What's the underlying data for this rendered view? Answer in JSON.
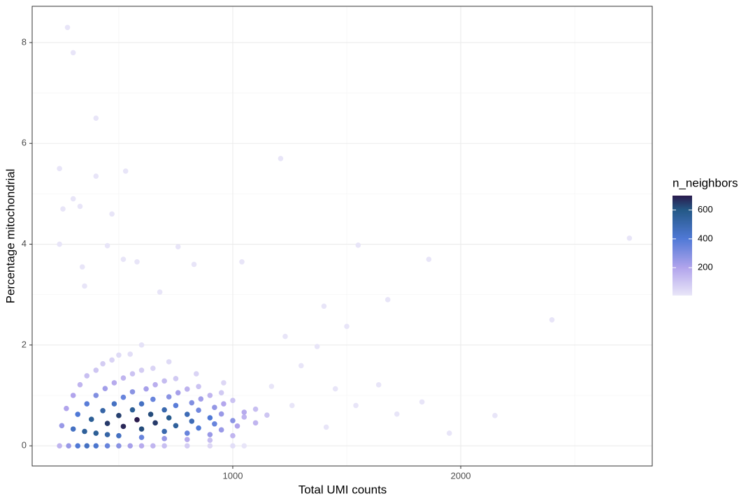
{
  "chart_data": {
    "type": "scatter",
    "xlabel": "Total UMI counts",
    "ylabel": "Percentage mitochondrial",
    "legend_title": "n_neighbors",
    "xlim": [
      120,
      2840
    ],
    "ylim": [
      -0.4,
      8.72
    ],
    "xticks": [
      1000,
      2000
    ],
    "yticks": [
      0,
      2,
      4,
      6,
      8
    ],
    "xminor": [
      500,
      1500,
      2500
    ],
    "yminor": [
      1,
      3,
      5,
      7
    ],
    "grid": true,
    "clim": [
      7,
      700
    ],
    "cticks": [
      200,
      400,
      600
    ],
    "colorscale": [
      {
        "value": 7,
        "color": "#e9e6f8"
      },
      {
        "value": 200,
        "color": "#b1a4ec"
      },
      {
        "value": 400,
        "color": "#5079d6"
      },
      {
        "value": 600,
        "color": "#245886"
      },
      {
        "value": 700,
        "color": "#2a1b4d"
      }
    ],
    "x": [
      240,
      280,
      320,
      360,
      400,
      450,
      500,
      550,
      600,
      650,
      700,
      800,
      900,
      1000,
      250,
      300,
      350,
      400,
      450,
      500,
      600,
      700,
      800,
      900,
      270,
      320,
      380,
      450,
      520,
      600,
      700,
      800,
      900,
      1000,
      300,
      360,
      430,
      500,
      580,
      660,
      750,
      850,
      950,
      330,
      400,
      480,
      560,
      640,
      720,
      820,
      920,
      1020,
      360,
      440,
      520,
      600,
      700,
      800,
      900,
      1000,
      1100,
      400,
      480,
      560,
      650,
      750,
      850,
      950,
      1050,
      430,
      520,
      620,
      720,
      820,
      920,
      1050,
      1150,
      470,
      560,
      660,
      760,
      860,
      960,
      1100,
      500,
      600,
      700,
      800,
      900,
      1000,
      550,
      650,
      750,
      850,
      950,
      600,
      720,
      840,
      960,
      275,
      300,
      400,
      240,
      530,
      1210,
      400,
      300,
      255,
      330,
      470,
      240,
      450,
      760,
      1550,
      1040,
      2740,
      1860,
      520,
      580,
      340,
      830,
      680,
      350,
      2400,
      1400,
      1680,
      1500,
      1230,
      1370,
      1640,
      1830,
      1950,
      2150,
      1720,
      1540,
      1450,
      1300,
      1410,
      1050,
      1260,
      1170
    ],
    "values": [
      0,
      0,
      0,
      0,
      0,
      0,
      0,
      0,
      0,
      0,
      0,
      0,
      0,
      0,
      0.4,
      0.333,
      0.286,
      0.25,
      0.222,
      0.2,
      0.167,
      0.143,
      0.125,
      0.111,
      0.741,
      0.625,
      0.526,
      0.444,
      0.385,
      0.333,
      0.286,
      0.25,
      0.222,
      0.2,
      1.0,
      0.833,
      0.698,
      0.6,
      0.517,
      0.455,
      0.4,
      0.353,
      0.316,
      1.212,
      1.0,
      0.833,
      0.714,
      0.625,
      0.556,
      0.488,
      0.435,
      0.392,
      1.389,
      1.136,
      0.962,
      0.833,
      0.714,
      0.625,
      0.556,
      0.5,
      0.455,
      1.5,
      1.25,
      1.071,
      0.923,
      0.8,
      0.706,
      0.632,
      0.571,
      1.628,
      1.346,
      1.129,
      0.972,
      0.854,
      0.761,
      0.667,
      0.609,
      1.702,
      1.429,
      1.212,
      1.053,
      0.93,
      0.833,
      0.727,
      1.8,
      1.5,
      1.286,
      1.125,
      1.0,
      0.9,
      1.818,
      1.538,
      1.333,
      1.176,
      1.053,
      2.0,
      1.667,
      1.429,
      1.25,
      8.3,
      7.8,
      6.5,
      5.5,
      5.45,
      5.7,
      5.35,
      4.9,
      4.7,
      4.75,
      4.6,
      4.0,
      3.97,
      3.95,
      3.98,
      3.65,
      4.12,
      3.7,
      3.7,
      3.65,
      3.55,
      3.6,
      3.05,
      3.17,
      2.5,
      2.77,
      2.9,
      2.37,
      2.17,
      1.97,
      1.21,
      0.87,
      0.25,
      0.6,
      0.63,
      0.8,
      1.13,
      1.59,
      0.37,
      0.0,
      0.8,
      1.18
    ],
    "color_values": [
      150,
      250,
      400,
      450,
      420,
      350,
      280,
      220,
      180,
      150,
      120,
      80,
      50,
      30,
      250,
      450,
      550,
      560,
      520,
      450,
      350,
      250,
      180,
      120,
      200,
      400,
      560,
      650,
      680,
      620,
      500,
      350,
      250,
      150,
      200,
      380,
      520,
      640,
      700,
      650,
      550,
      400,
      250,
      150,
      300,
      450,
      560,
      620,
      580,
      480,
      350,
      200,
      120,
      230,
      350,
      450,
      500,
      480,
      400,
      280,
      150,
      100,
      180,
      280,
      350,
      380,
      330,
      250,
      150,
      80,
      150,
      220,
      280,
      300,
      260,
      180,
      100,
      60,
      110,
      170,
      220,
      230,
      190,
      120,
      40,
      80,
      130,
      160,
      150,
      110,
      30,
      60,
      90,
      110,
      90,
      20,
      40,
      60,
      50,
      10,
      10,
      10,
      10,
      10,
      10,
      10,
      10,
      10,
      10,
      10,
      10,
      10,
      10,
      10,
      10,
      10,
      10,
      10,
      10,
      10,
      10,
      10,
      10,
      10,
      10,
      10,
      10,
      10,
      10,
      10,
      10,
      10,
      10,
      10,
      10,
      10,
      10,
      10,
      10,
      10,
      10
    ]
  }
}
